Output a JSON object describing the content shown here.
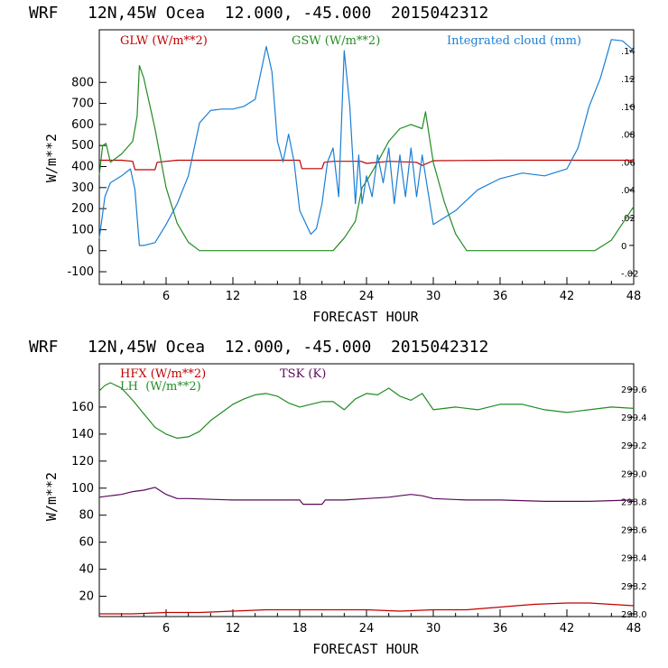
{
  "chart_data": [
    {
      "type": "line",
      "title": "WRF   12N,45W Ocea  12.000, -45.000  2015042312",
      "xlabel": "FORECAST HOUR",
      "ylabel": "W/m**2",
      "xlim": [
        0,
        48
      ],
      "ylim": [
        -160,
        1050
      ],
      "y2lim": [
        -0.028,
        0.155
      ],
      "xticks": [
        6,
        12,
        18,
        24,
        30,
        36,
        42,
        48
      ],
      "yticks": [
        -100,
        0,
        100,
        200,
        300,
        400,
        500,
        600,
        700,
        800
      ],
      "y2ticks": [
        -0.02,
        0,
        0.02,
        0.04,
        0.06,
        0.08,
        0.1,
        0.12,
        0.14
      ],
      "y2tick_labels": [
        "-.02",
        "0",
        ".02",
        ".04",
        ".06",
        ".08",
        ".10",
        ".12",
        ".14"
      ],
      "series": [
        {
          "name": "GLW (W/m**2)",
          "color": "#c00000",
          "axis": "left",
          "x": [
            0,
            2,
            3,
            3.2,
            5,
            5.2,
            6,
            7,
            12,
            15,
            18,
            18.2,
            20,
            20.2,
            21,
            23.5,
            24,
            26,
            28.5,
            29,
            30,
            36,
            42,
            48
          ],
          "y": [
            430,
            430,
            425,
            385,
            385,
            420,
            425,
            430,
            430,
            430,
            430,
            390,
            390,
            420,
            425,
            425,
            415,
            425,
            420,
            405,
            428,
            430,
            430,
            430
          ]
        },
        {
          "name": "GSW (W/m**2)",
          "color": "#228B22",
          "axis": "left",
          "x": [
            0,
            0.3,
            0.6,
            1,
            2,
            3,
            3.4,
            3.6,
            4,
            5,
            6,
            7,
            8,
            9,
            21,
            22,
            23,
            23.6,
            24,
            25,
            26,
            27,
            28,
            29,
            29.3,
            30,
            31,
            32,
            33,
            44.5,
            46,
            47,
            48
          ],
          "y": [
            360,
            500,
            510,
            420,
            460,
            520,
            640,
            880,
            820,
            580,
            300,
            130,
            40,
            0,
            0,
            60,
            140,
            300,
            330,
            420,
            520,
            580,
            600,
            580,
            660,
            420,
            230,
            80,
            0,
            0,
            50,
            130,
            210
          ]
        },
        {
          "name": "Integrated cloud (mm)",
          "color": "#1a7fd4",
          "axis": "right",
          "x": [
            0,
            0.5,
            1,
            2,
            2.8,
            3.2,
            3.6,
            4,
            5,
            6,
            7,
            8,
            9,
            10,
            11,
            12,
            13,
            14,
            15,
            15.5,
            16,
            16.5,
            17,
            17.5,
            18,
            19,
            19.5,
            20,
            20.5,
            21,
            21.5,
            22,
            22.5,
            23,
            23.3,
            23.6,
            24,
            24.5,
            25,
            25.5,
            26,
            26.5,
            27,
            27.5,
            28,
            28.5,
            29,
            29.5,
            30,
            32,
            34,
            36,
            38,
            40,
            42,
            43,
            44,
            45,
            46,
            47,
            48
          ],
          "y": [
            0.005,
            0.035,
            0.045,
            0.05,
            0.055,
            0.04,
            0.0,
            0.0,
            0.002,
            0.015,
            0.03,
            0.05,
            0.088,
            0.097,
            0.098,
            0.098,
            0.1,
            0.105,
            0.143,
            0.125,
            0.075,
            0.06,
            0.08,
            0.06,
            0.025,
            0.008,
            0.012,
            0.03,
            0.06,
            0.07,
            0.035,
            0.14,
            0.1,
            0.03,
            0.065,
            0.03,
            0.05,
            0.035,
            0.065,
            0.045,
            0.07,
            0.03,
            0.065,
            0.035,
            0.07,
            0.035,
            0.065,
            0.04,
            0.015,
            0.025,
            0.04,
            0.048,
            0.052,
            0.05,
            0.055,
            0.07,
            0.1,
            0.12,
            0.148,
            0.147,
            0.14
          ]
        }
      ]
    },
    {
      "type": "line",
      "title": "WRF   12N,45W Ocea  12.000, -45.000  2015042312",
      "xlabel": "FORECAST HOUR",
      "ylabel": "W/m**2",
      "xlim": [
        0,
        48
      ],
      "ylim": [
        5,
        192
      ],
      "y2lim": [
        297.98,
        299.78
      ],
      "xticks": [
        6,
        12,
        18,
        24,
        30,
        36,
        42,
        48
      ],
      "yticks": [
        20,
        40,
        60,
        80,
        100,
        120,
        140,
        160
      ],
      "y2ticks": [
        298.0,
        298.2,
        298.4,
        298.6,
        298.8,
        299.0,
        299.2,
        299.4,
        299.6
      ],
      "y2tick_labels": [
        "298.0",
        "298.2",
        "298.4",
        "298.6",
        "298.8",
        "299.0",
        "299.2",
        "299.4",
        "299.6"
      ],
      "series": [
        {
          "name": "HFX (W/m**2)",
          "color": "#c00000",
          "axis": "left",
          "x": [
            0,
            3,
            6,
            9,
            12,
            15,
            18,
            21,
            24,
            27,
            30,
            33,
            36,
            39,
            42,
            44,
            46,
            48
          ],
          "y": [
            7,
            7,
            8,
            8,
            9,
            10,
            10,
            10,
            10,
            9,
            10,
            10,
            12,
            14,
            15,
            15,
            14,
            13
          ]
        },
        {
          "name": "LH  (W/m**2)",
          "color": "#228B22",
          "axis": "left",
          "x": [
            0,
            0.5,
            1,
            2,
            3,
            4,
            5,
            6,
            7,
            8,
            9,
            10,
            11,
            12,
            13,
            14,
            15,
            16,
            17,
            18,
            19,
            20,
            21,
            22,
            23,
            24,
            25,
            26,
            27,
            28,
            29,
            30,
            32,
            34,
            36,
            38,
            40,
            42,
            44,
            46,
            48
          ],
          "y": [
            172,
            176,
            178,
            174,
            165,
            155,
            145,
            140,
            137,
            138,
            142,
            150,
            156,
            162,
            166,
            169,
            170,
            168,
            163,
            160,
            162,
            164,
            164,
            158,
            166,
            170,
            169,
            174,
            168,
            165,
            170,
            158,
            160,
            158,
            162,
            162,
            158,
            156,
            158,
            160,
            159
          ]
        },
        {
          "name": "TSK (K)",
          "color": "#5a0a5a",
          "axis": "right",
          "x": [
            0,
            1,
            2,
            3,
            4,
            5,
            6,
            7,
            8,
            12,
            16,
            18,
            18.3,
            20,
            20.3,
            22,
            24,
            26,
            27,
            28,
            29,
            30,
            33,
            36,
            40,
            44,
            48
          ],
          "y": [
            298.83,
            298.84,
            298.85,
            298.87,
            298.88,
            298.9,
            298.85,
            298.82,
            298.82,
            298.81,
            298.81,
            298.81,
            298.78,
            298.78,
            298.81,
            298.81,
            298.82,
            298.83,
            298.84,
            298.85,
            298.84,
            298.82,
            298.81,
            298.81,
            298.8,
            298.8,
            298.81
          ]
        }
      ]
    }
  ]
}
